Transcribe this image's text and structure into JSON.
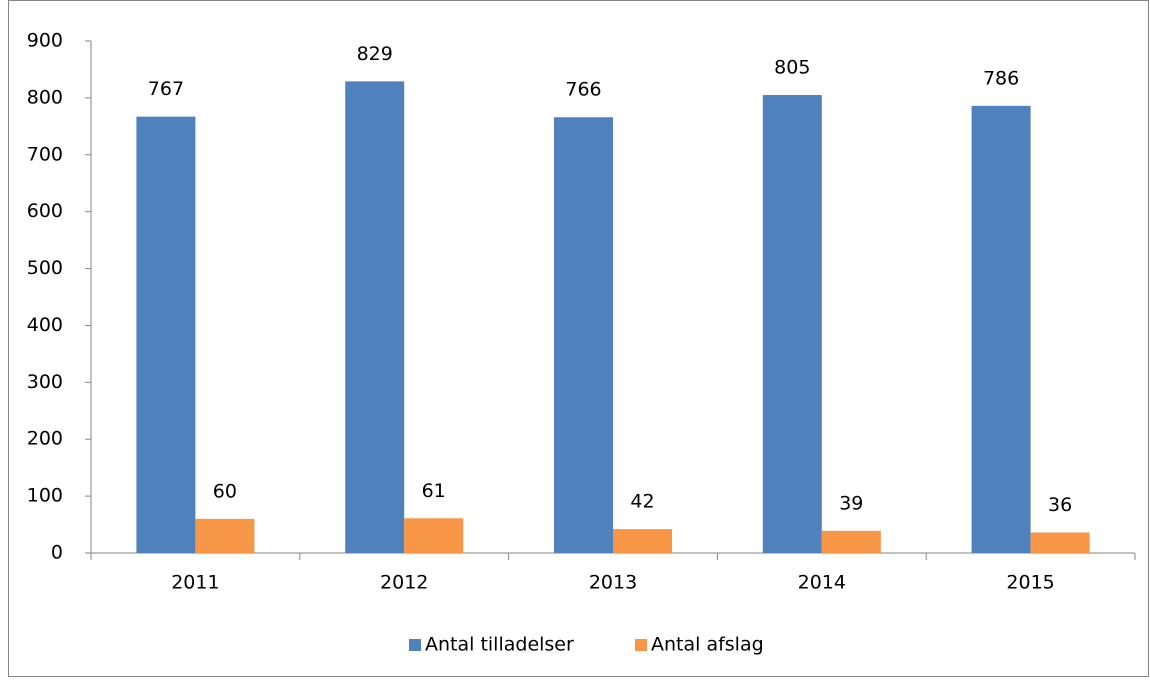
{
  "chart_data": {
    "type": "bar",
    "categories": [
      "2011",
      "2012",
      "2013",
      "2014",
      "2015"
    ],
    "series": [
      {
        "name": "Antal tilladelser",
        "color": "#4f81bd",
        "values": [
          767,
          829,
          766,
          805,
          786
        ]
      },
      {
        "name": "Antal afslag",
        "color": "#f79646",
        "values": [
          60,
          61,
          42,
          39,
          36
        ]
      }
    ],
    "ylim": [
      0,
      900
    ],
    "yticks": [
      0,
      100,
      200,
      300,
      400,
      500,
      600,
      700,
      800,
      900
    ],
    "grid": false,
    "legend": "bottom"
  }
}
